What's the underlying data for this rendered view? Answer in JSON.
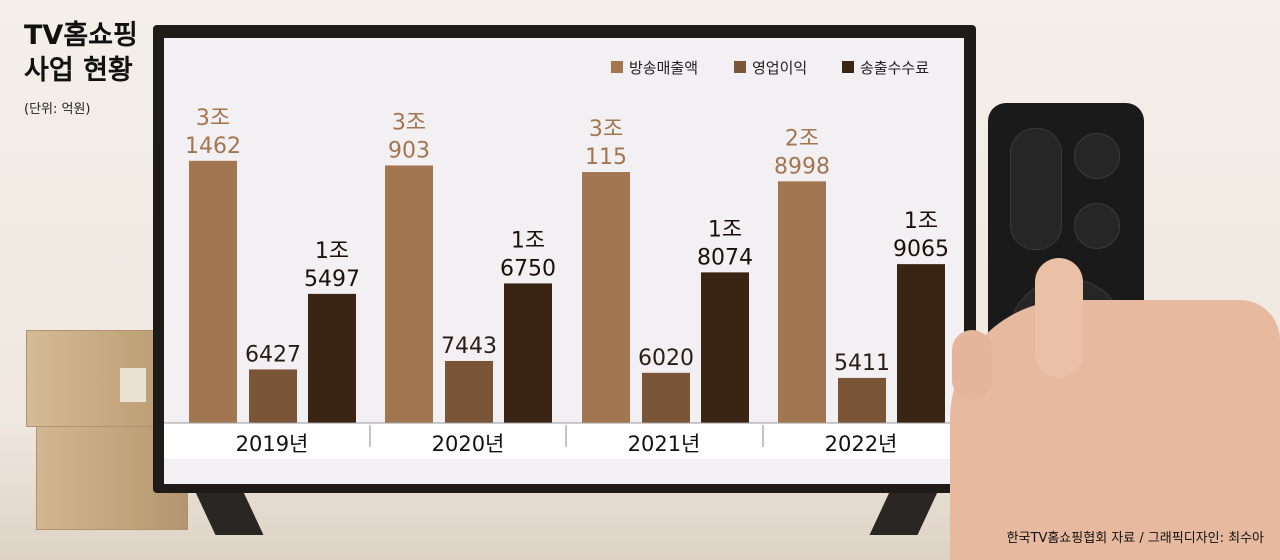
{
  "header": {
    "title_line1": "TV홈쇼핑",
    "title_line2": "사업 현황",
    "unit": "(단위: 억원)"
  },
  "source": "한국TV홈쇼핑협회 자료 / 그래픽디자인: 최수아",
  "chart_data": {
    "type": "bar",
    "title": "",
    "xlabel": "",
    "ylabel": "",
    "ylim": [
      0,
      33000
    ],
    "legend_position": "top-right",
    "categories": [
      "2019년",
      "2020년",
      "2021년",
      "2022년"
    ],
    "series": [
      {
        "name": "방송매출액",
        "values": [
          31462,
          30903,
          30115,
          28998
        ],
        "labels": [
          [
            "3조",
            "1462"
          ],
          [
            "3조",
            "903"
          ],
          [
            "3조",
            "115"
          ],
          [
            "2조",
            "8998"
          ]
        ]
      },
      {
        "name": "영업이익",
        "values": [
          6427,
          7443,
          6020,
          5411
        ],
        "labels": [
          [
            "6427"
          ],
          [
            "7443"
          ],
          [
            "6020"
          ],
          [
            "5411"
          ]
        ]
      },
      {
        "name": "송출수수료",
        "values": [
          15497,
          16750,
          18074,
          19065
        ],
        "labels": [
          [
            "1조",
            "5497"
          ],
          [
            "1조",
            "6750"
          ],
          [
            "1조",
            "8074"
          ],
          [
            "1조",
            "9065"
          ]
        ]
      }
    ],
    "colors": [
      "#a37652",
      "#7a5538",
      "#3a2514"
    ],
    "label_colors": [
      "#a37652",
      "#2a1d14",
      "#1a1208"
    ]
  }
}
